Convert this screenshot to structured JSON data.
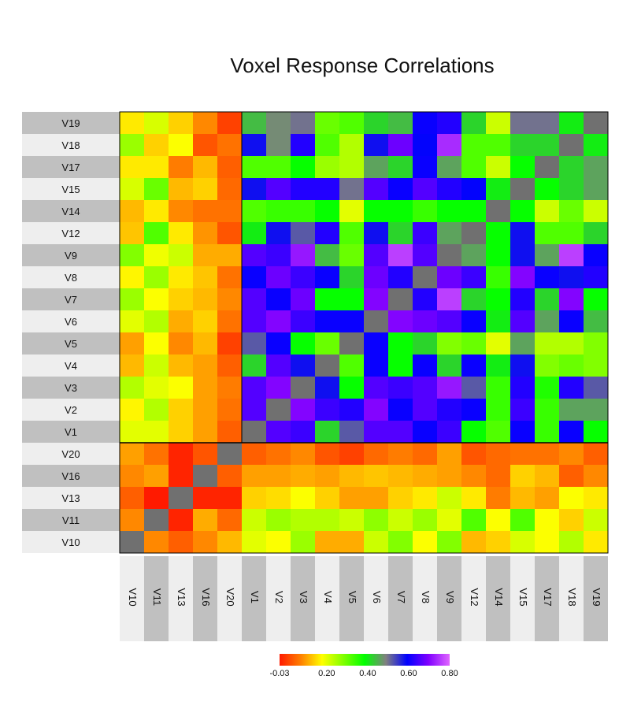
{
  "chart_data": {
    "type": "heatmap",
    "title": "Voxel Response Correlations",
    "row_labels": [
      "V19",
      "V18",
      "V17",
      "V15",
      "V14",
      "V12",
      "V9",
      "V8",
      "V7",
      "V6",
      "V5",
      "V4",
      "V3",
      "V2",
      "V1",
      "V20",
      "V16",
      "V13",
      "V11",
      "V10"
    ],
    "col_labels": [
      "V10",
      "V11",
      "V13",
      "V16",
      "V20",
      "V1",
      "V2",
      "V3",
      "V4",
      "V5",
      "V6",
      "V7",
      "V8",
      "V9",
      "V12",
      "V14",
      "V15",
      "V17",
      "V18",
      "V19"
    ],
    "diagonal_color": "#707070",
    "colorbar": {
      "ticks": [
        "-0.03",
        "0.20",
        "0.40",
        "0.60",
        "0.80"
      ],
      "range": [
        -0.03,
        0.8
      ],
      "colors": [
        "#ff1a00",
        "#ff8000",
        "#ffff00",
        "#80ff00",
        "#00ff00",
        "#808080",
        "#0000ff",
        "#8000ff",
        "#e066ff"
      ]
    },
    "values": [
      [
        0.16,
        0.21,
        0.14,
        0.08,
        0.01,
        0.44,
        0.48,
        0.5,
        0.3,
        0.32,
        0.42,
        0.44,
        0.6,
        0.62,
        0.42,
        0.22,
        0.5,
        0.5,
        0.4,
        0.5
      ],
      [
        0.26,
        0.14,
        0.18,
        0.03,
        0.06,
        0.58,
        0.48,
        0.62,
        0.32,
        0.24,
        0.58,
        0.68,
        0.59,
        0.74,
        0.32,
        0.32,
        0.42,
        0.42,
        0.5,
        0.4
      ],
      [
        0.16,
        0.16,
        0.07,
        0.12,
        0.04,
        0.32,
        0.32,
        0.38,
        0.26,
        0.24,
        0.46,
        0.42,
        0.6,
        0.46,
        0.32,
        0.22,
        0.38,
        0.5,
        0.42,
        0.46
      ],
      [
        0.21,
        0.3,
        0.12,
        0.14,
        0.05,
        0.58,
        0.66,
        0.62,
        0.62,
        0.5,
        0.66,
        0.6,
        0.66,
        0.62,
        0.59,
        0.4,
        0.5,
        0.38,
        0.42,
        0.46
      ],
      [
        0.12,
        0.16,
        0.08,
        0.06,
        0.06,
        0.32,
        0.34,
        0.34,
        0.38,
        0.2,
        0.38,
        0.38,
        0.34,
        0.38,
        0.38,
        0.5,
        0.38,
        0.22,
        0.3,
        0.22
      ],
      [
        0.13,
        0.32,
        0.16,
        0.09,
        0.03,
        0.4,
        0.58,
        0.52,
        0.62,
        0.32,
        0.58,
        0.42,
        0.64,
        0.46,
        0.5,
        0.38,
        0.58,
        0.32,
        0.32,
        0.42
      ],
      [
        0.28,
        0.19,
        0.22,
        0.11,
        0.11,
        0.66,
        0.64,
        0.72,
        0.44,
        0.3,
        0.66,
        0.76,
        0.66,
        0.5,
        0.46,
        0.38,
        0.58,
        0.46,
        0.76,
        0.6
      ],
      [
        0.17,
        0.26,
        0.16,
        0.13,
        0.06,
        0.6,
        0.68,
        0.64,
        0.6,
        0.42,
        0.68,
        0.62,
        0.5,
        0.68,
        0.64,
        0.34,
        0.7,
        0.6,
        0.58,
        0.62
      ],
      [
        0.26,
        0.18,
        0.14,
        0.12,
        0.08,
        0.66,
        0.6,
        0.68,
        0.38,
        0.38,
        0.7,
        0.5,
        0.62,
        0.76,
        0.42,
        0.38,
        0.62,
        0.42,
        0.7,
        0.38
      ],
      [
        0.2,
        0.24,
        0.11,
        0.14,
        0.06,
        0.66,
        0.7,
        0.64,
        0.6,
        0.6,
        0.5,
        0.7,
        0.68,
        0.66,
        0.6,
        0.4,
        0.66,
        0.46,
        0.6,
        0.44
      ],
      [
        0.1,
        0.18,
        0.08,
        0.12,
        0.01,
        0.52,
        0.6,
        0.38,
        0.3,
        0.5,
        0.6,
        0.38,
        0.42,
        0.28,
        0.3,
        0.2,
        0.46,
        0.24,
        0.24,
        0.28
      ],
      [
        0.12,
        0.22,
        0.12,
        0.1,
        0.04,
        0.42,
        0.66,
        0.58,
        0.5,
        0.32,
        0.6,
        0.38,
        0.6,
        0.42,
        0.6,
        0.4,
        0.58,
        0.28,
        0.3,
        0.28
      ],
      [
        0.24,
        0.2,
        0.18,
        0.1,
        0.07,
        0.66,
        0.7,
        0.5,
        0.58,
        0.38,
        0.66,
        0.64,
        0.66,
        0.72,
        0.52,
        0.34,
        0.62,
        0.36,
        0.62,
        0.52
      ],
      [
        0.17,
        0.24,
        0.14,
        0.1,
        0.06,
        0.66,
        0.5,
        0.7,
        0.64,
        0.62,
        0.7,
        0.6,
        0.66,
        0.62,
        0.6,
        0.34,
        0.64,
        0.34,
        0.46,
        0.46
      ],
      [
        0.2,
        0.2,
        0.14,
        0.1,
        0.04,
        0.5,
        0.66,
        0.64,
        0.42,
        0.52,
        0.66,
        0.66,
        0.6,
        0.64,
        0.38,
        0.32,
        0.6,
        0.34,
        0.6,
        0.38
      ],
      [
        0.1,
        0.06,
        -0.02,
        0.03,
        0.5,
        0.04,
        0.06,
        0.08,
        0.03,
        0.01,
        0.05,
        0.07,
        0.05,
        0.1,
        0.03,
        0.05,
        0.06,
        0.06,
        0.08,
        0.04
      ],
      [
        0.08,
        0.1,
        -0.02,
        0.5,
        0.04,
        0.1,
        0.1,
        0.11,
        0.1,
        0.12,
        0.13,
        0.12,
        0.11,
        0.1,
        0.08,
        0.05,
        0.14,
        0.12,
        0.04,
        0.08
      ],
      [
        0.04,
        -0.03,
        0.5,
        -0.02,
        -0.02,
        0.14,
        0.15,
        0.18,
        0.14,
        0.1,
        0.1,
        0.14,
        0.16,
        0.22,
        0.16,
        0.07,
        0.12,
        0.1,
        0.18,
        0.16
      ],
      [
        0.08,
        0.5,
        -0.02,
        0.11,
        0.05,
        0.22,
        0.26,
        0.24,
        0.24,
        0.22,
        0.27,
        0.22,
        0.26,
        0.2,
        0.32,
        0.18,
        0.32,
        0.18,
        0.14,
        0.22
      ],
      [
        0.5,
        0.08,
        0.04,
        0.08,
        0.12,
        0.2,
        0.18,
        0.26,
        0.11,
        0.11,
        0.22,
        0.28,
        0.18,
        0.28,
        0.12,
        0.14,
        0.21,
        0.18,
        0.24,
        0.16
      ]
    ]
  }
}
